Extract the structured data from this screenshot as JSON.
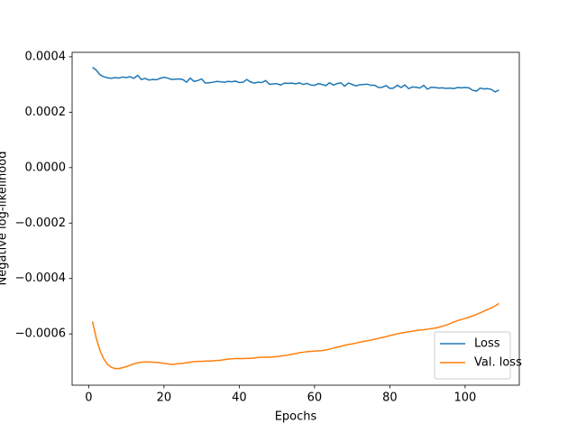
{
  "chart_data": {
    "type": "line",
    "xlabel": "Epochs",
    "ylabel": "Negative log-likelihood",
    "x": [
      1,
      2,
      3,
      4,
      5,
      6,
      7,
      8,
      9,
      10,
      11,
      12,
      13,
      14,
      15,
      16,
      17,
      18,
      19,
      20,
      21,
      22,
      23,
      24,
      25,
      26,
      27,
      28,
      29,
      30,
      31,
      32,
      33,
      34,
      35,
      36,
      37,
      38,
      39,
      40,
      41,
      42,
      43,
      44,
      45,
      46,
      47,
      48,
      49,
      50,
      51,
      52,
      53,
      54,
      55,
      56,
      57,
      58,
      59,
      60,
      61,
      62,
      63,
      64,
      65,
      66,
      67,
      68,
      69,
      70,
      71,
      72,
      73,
      74,
      75,
      76,
      77,
      78,
      79,
      80,
      81,
      82,
      83,
      84,
      85,
      86,
      87,
      88,
      89,
      90,
      91,
      92,
      93,
      94,
      95,
      96,
      97,
      98,
      99,
      100,
      101,
      102,
      103,
      104,
      105,
      106,
      107,
      108,
      109
    ],
    "series": [
      {
        "name": "Loss",
        "color": "#1f77b4",
        "values": [
          0.000362,
          0.000352,
          0.000335,
          0.000328,
          0.000324,
          0.000322,
          0.000325,
          0.000323,
          0.000327,
          0.000325,
          0.000328,
          0.000322,
          0.000333,
          0.000318,
          0.000322,
          0.000316,
          0.000318,
          0.000317,
          0.000322,
          0.000326,
          0.000323,
          0.000318,
          0.000319,
          0.00032,
          0.000318,
          0.000308,
          0.000323,
          0.000311,
          0.000314,
          0.00032,
          0.000305,
          0.000306,
          0.000308,
          0.000311,
          0.00031,
          0.000308,
          0.000311,
          0.00031,
          0.000312,
          0.000307,
          0.000308,
          0.000318,
          0.000309,
          0.000305,
          0.000308,
          0.000307,
          0.000314,
          0.000301,
          0.000302,
          0.000303,
          0.000298,
          0.000305,
          0.000304,
          0.000305,
          0.000302,
          0.000306,
          0.0003,
          0.000304,
          0.000298,
          0.000297,
          0.000303,
          0.0003,
          0.000296,
          0.000306,
          0.000298,
          0.000303,
          0.000306,
          0.000294,
          0.000305,
          0.0003,
          0.000295,
          0.000299,
          0.0003,
          0.000301,
          0.000297,
          0.000297,
          0.000289,
          0.00029,
          0.000296,
          0.000286,
          0.000287,
          0.000297,
          0.000289,
          0.000298,
          0.000285,
          0.000291,
          0.00029,
          0.000287,
          0.000297,
          0.000283,
          0.00029,
          0.000289,
          0.000287,
          0.000288,
          0.000286,
          0.000287,
          0.000285,
          0.000289,
          0.000288,
          0.000289,
          0.000288,
          0.000279,
          0.000276,
          0.000287,
          0.000284,
          0.000285,
          0.000282,
          0.000273,
          0.00028
        ]
      },
      {
        "name": "Val. loss",
        "color": "#ff7f0e",
        "values": [
          -0.000555,
          -0.000615,
          -0.00066,
          -0.00069,
          -0.00071,
          -0.00072,
          -0.000725,
          -0.000725,
          -0.000722,
          -0.000718,
          -0.000713,
          -0.000708,
          -0.000704,
          -0.000702,
          -0.000701,
          -0.000701,
          -0.000702,
          -0.000703,
          -0.000704,
          -0.000706,
          -0.000708,
          -0.00071,
          -0.000709,
          -0.000707,
          -0.000706,
          -0.000704,
          -0.000702,
          -0.0007,
          -0.000699,
          -0.000699,
          -0.000698,
          -0.000698,
          -0.000697,
          -0.000696,
          -0.000695,
          -0.000693,
          -0.000691,
          -0.00069,
          -0.000689,
          -0.000689,
          -0.000689,
          -0.000688,
          -0.000688,
          -0.000687,
          -0.000685,
          -0.000684,
          -0.000684,
          -0.000684,
          -0.000683,
          -0.000682,
          -0.00068,
          -0.000678,
          -0.000676,
          -0.000673,
          -0.000671,
          -0.000668,
          -0.000666,
          -0.000664,
          -0.000663,
          -0.000662,
          -0.000661,
          -0.00066,
          -0.000658,
          -0.000655,
          -0.000651,
          -0.000648,
          -0.000645,
          -0.000641,
          -0.000638,
          -0.000636,
          -0.000633,
          -0.00063,
          -0.000627,
          -0.000625,
          -0.000622,
          -0.000619,
          -0.000616,
          -0.000613,
          -0.00061,
          -0.000606,
          -0.000603,
          -0.0006,
          -0.000597,
          -0.000595,
          -0.000592,
          -0.00059,
          -0.000588,
          -0.000586,
          -0.000585,
          -0.000583,
          -0.000581,
          -0.000579,
          -0.000576,
          -0.000572,
          -0.000568,
          -0.000563,
          -0.000557,
          -0.000552,
          -0.000548,
          -0.000544,
          -0.00054,
          -0.000535,
          -0.00053,
          -0.000524,
          -0.000518,
          -0.000512,
          -0.000506,
          -0.000499,
          -0.00049
        ]
      }
    ],
    "xlim": [
      -4.4,
      114.4
    ],
    "xticks": [
      0,
      20,
      40,
      60,
      80,
      100
    ],
    "ylim": [
      -0.000785,
      0.000416
    ],
    "yticks": [
      {
        "value": -0.0006,
        "label": "−0.0006"
      },
      {
        "value": -0.0004,
        "label": "−0.0004"
      },
      {
        "value": -0.0002,
        "label": "−0.0002"
      },
      {
        "value": 0,
        "label": "0.0000"
      },
      {
        "value": 0.0002,
        "label": "0.0002"
      },
      {
        "value": 0.0004,
        "label": "0.0004"
      }
    ],
    "legend": "lower right",
    "grid": false
  }
}
